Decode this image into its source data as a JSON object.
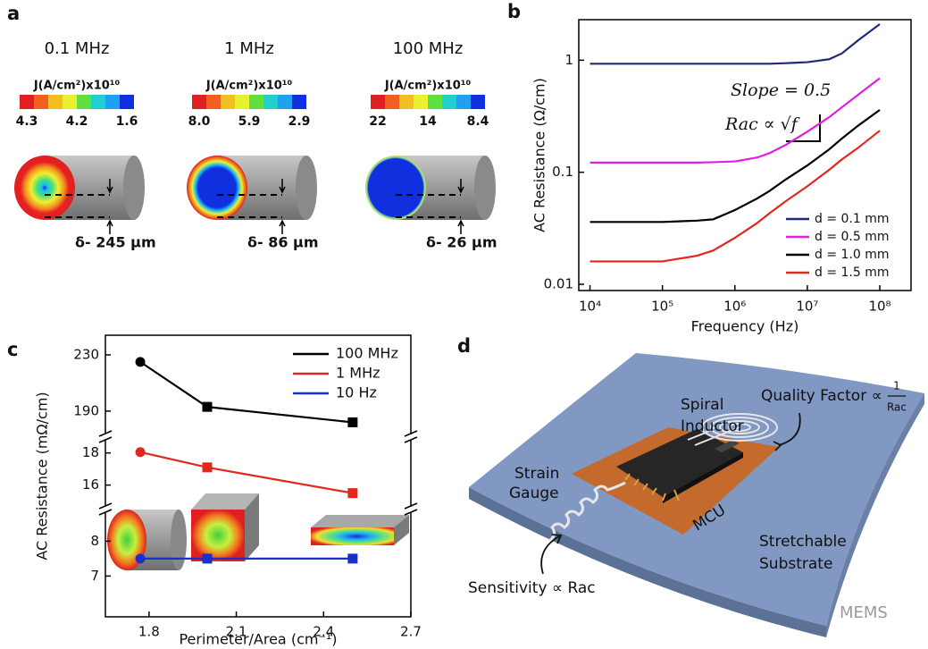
{
  "panel_labels": [
    "a",
    "b",
    "c",
    "d"
  ],
  "panel_a": {
    "items": [
      {
        "frequency": "0.1 MHz",
        "colorbar_title": "J(A/cm²)x10¹⁰",
        "colorbar_labels": [
          "4.3",
          "4.2",
          "1.6"
        ],
        "skin_depth": "δ- 245 μm"
      },
      {
        "frequency": "1 MHz",
        "colorbar_title": "J(A/cm²)x10¹⁰",
        "colorbar_labels": [
          "8.0",
          "5.9",
          "2.9"
        ],
        "skin_depth": "δ- 86 μm"
      },
      {
        "frequency": "100 MHz",
        "colorbar_title": "J(A/cm²)x10¹⁰",
        "colorbar_labels": [
          "22",
          "14",
          "8.4"
        ],
        "skin_depth": "δ- 26 μm"
      }
    ]
  },
  "chart_data": [
    {
      "type": "line",
      "xlabel": "Frequency (Hz)",
      "ylabel": "AC Resistance (Ω/cm)",
      "xscale": "log",
      "yscale": "log",
      "x": [
        10000,
        100000,
        300000,
        500000,
        1000000,
        2000000,
        3000000,
        5000000,
        10000000,
        20000000,
        30000000,
        50000000,
        100000000
      ],
      "series": [
        {
          "name": "d = 0.1 mm",
          "color": "#1f2a7a",
          "values": [
            0.93,
            0.93,
            0.93,
            0.93,
            0.93,
            0.93,
            0.93,
            0.94,
            0.96,
            1.02,
            1.15,
            1.5,
            2.1
          ]
        },
        {
          "name": "d = 0.5 mm",
          "color": "#e020e0",
          "values": [
            0.122,
            0.122,
            0.122,
            0.123,
            0.125,
            0.135,
            0.148,
            0.175,
            0.23,
            0.31,
            0.38,
            0.49,
            0.69
          ]
        },
        {
          "name": "d = 1.0 mm",
          "color": "#000000",
          "values": [
            0.036,
            0.036,
            0.037,
            0.038,
            0.046,
            0.058,
            0.068,
            0.086,
            0.115,
            0.16,
            0.2,
            0.26,
            0.36
          ]
        },
        {
          "name": "d = 1.5 mm",
          "color": "#e0281e",
          "values": [
            0.016,
            0.016,
            0.018,
            0.02,
            0.026,
            0.035,
            0.043,
            0.055,
            0.075,
            0.105,
            0.13,
            0.165,
            0.235
          ]
        }
      ],
      "xlim": [
        7000,
        270000000
      ],
      "ylim": [
        0.0088,
        2.3
      ],
      "xticks": [
        {
          "value": 10000,
          "label": "10⁴"
        },
        {
          "value": 100000,
          "label": "10⁵"
        },
        {
          "value": 1000000,
          "label": "10⁶"
        },
        {
          "value": 10000000,
          "label": "10⁷"
        },
        {
          "value": 100000000,
          "label": "10⁸"
        }
      ],
      "yticks": [
        0.01,
        0.1,
        1
      ],
      "legend": "lower right",
      "annotations": [
        "Slope = 0.5",
        "Rac ∝ √f"
      ]
    },
    {
      "type": "line",
      "xlabel": "Perimeter/Area (cm⁻¹)",
      "ylabel": "AC Resistance (mΩ/cm)",
      "x": [
        1.77,
        2.0,
        2.5
      ],
      "series": [
        {
          "name": "100 MHz",
          "color": "#000000",
          "values": [
            225,
            193,
            182
          ]
        },
        {
          "name": "1 MHz",
          "color": "#e0281e",
          "values": [
            18.05,
            17.1,
            15.5
          ]
        },
        {
          "name": "10 Hz",
          "color": "#1a2fd0",
          "values": [
            7.5,
            7.5,
            7.5
          ]
        }
      ],
      "xlim": [
        1.65,
        2.7
      ],
      "xticks": [
        1.8,
        2.1,
        2.4,
        2.7
      ],
      "y_segments": [
        {
          "ylim": [
            174,
            244
          ],
          "yticks": [
            190,
            230
          ]
        },
        {
          "ylim": [
            14.7,
            18.76
          ],
          "yticks": [
            16,
            18
          ]
        },
        {
          "ylim": [
            5.83,
            8.78
          ],
          "yticks": [
            7,
            8
          ]
        }
      ],
      "legend": "upper right"
    }
  ],
  "panel_d": {
    "spiral": [
      "Spiral",
      "Inductor"
    ],
    "quality": "Quality Factor ∝",
    "quality_num": "1",
    "quality_den": "Rac",
    "strain": [
      "Strain",
      "Gauge"
    ],
    "mcu": "MCU",
    "substrate": [
      "Stretchable",
      "Substrate"
    ],
    "sensitivity": "Sensitivity ∝ Rac"
  },
  "watermark": "MEMS"
}
